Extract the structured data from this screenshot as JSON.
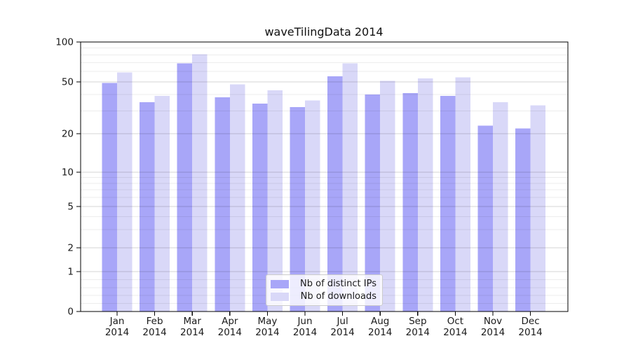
{
  "title": "waveTilingData 2014",
  "chart_data": {
    "type": "bar",
    "title": "waveTilingData 2014",
    "categories": [
      "Jan",
      "Feb",
      "Mar",
      "Apr",
      "May",
      "Jun",
      "Jul",
      "Aug",
      "Sep",
      "Oct",
      "Nov",
      "Dec"
    ],
    "x_tick_second_line": "2014",
    "series": [
      {
        "name": "Nb of distinct IPs",
        "color": "#a8a6f8",
        "values": [
          49,
          35,
          69,
          38,
          34,
          32,
          55,
          40,
          41,
          39,
          23,
          22
        ]
      },
      {
        "name": "Nb of downloads",
        "color": "#d9d8f8",
        "values": [
          59,
          39,
          81,
          48,
          43,
          36,
          69,
          51,
          53,
          54,
          35,
          33
        ]
      }
    ],
    "yscale": "symlog",
    "ylim": [
      0,
      100
    ],
    "y_ticks": [
      0,
      1,
      2,
      5,
      10,
      20,
      50,
      100
    ],
    "grid": true,
    "legend_position": "lower center"
  }
}
